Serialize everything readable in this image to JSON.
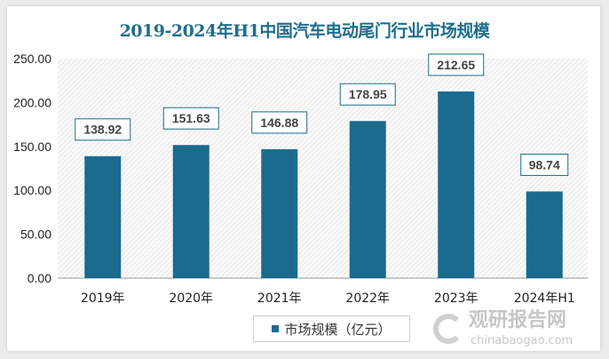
{
  "chart_data": {
    "type": "bar",
    "title": "2019-2024年H1中国汽车电动尾门行业市场规模",
    "categories": [
      "2019年",
      "2020年",
      "2021年",
      "2022年",
      "2023年",
      "2024年H1"
    ],
    "series": [
      {
        "name": "市场规模（亿元）",
        "values": [
          138.92,
          151.63,
          146.88,
          178.95,
          212.65,
          98.74
        ]
      }
    ],
    "data_labels": [
      "138.92",
      "151.63",
      "146.88",
      "178.95",
      "212.65",
      "98.74"
    ],
    "yticks": [
      "0.00",
      "50.00",
      "100.00",
      "150.00",
      "200.00",
      "250.00"
    ],
    "ylim": [
      0,
      250
    ],
    "xlabel": "",
    "ylabel": "",
    "grid": false,
    "legend": "bottom",
    "colors": {
      "bar": "#1b6b8f",
      "title": "#1f6e8c"
    }
  },
  "watermark": {
    "cn": "观研报告网",
    "en": "chinabaogao.com"
  }
}
